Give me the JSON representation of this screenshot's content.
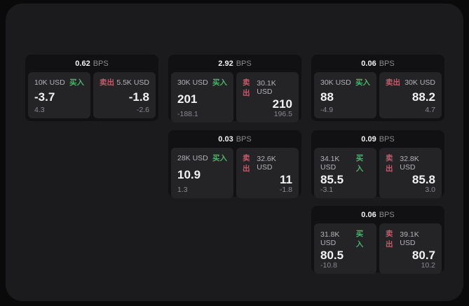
{
  "labels": {
    "bps_unit": "BPS",
    "buy": "买入",
    "sell": "卖出"
  },
  "colors": {
    "buy_green": "#4db36a",
    "sell_red": "#c9596a",
    "page_bg": "#0a0a0b",
    "panel_bg": "#1b1b1d",
    "card_bg": "#111113",
    "tile_bg": "#242427"
  },
  "cards": [
    {
      "bps": "0.62",
      "buy": {
        "amount": "10K USD",
        "price": "-3.7",
        "change": "4.3"
      },
      "sell": {
        "amount": "5.5K USD",
        "price": "-1.8",
        "change": "-2.6"
      }
    },
    {
      "bps": "2.92",
      "buy": {
        "amount": "30K USD",
        "price": "201",
        "change": "-188.1"
      },
      "sell": {
        "amount": "30.1K USD",
        "price": "210",
        "change": "196.5"
      }
    },
    {
      "bps": "0.06",
      "buy": {
        "amount": "30K USD",
        "price": "88",
        "change": "-4.9"
      },
      "sell": {
        "amount": "30K USD",
        "price": "88.2",
        "change": "4.7"
      }
    },
    {
      "bps": "0.03",
      "buy": {
        "amount": "28K USD",
        "price": "10.9",
        "change": "1.3"
      },
      "sell": {
        "amount": "32.6K USD",
        "price": "11",
        "change": "-1.8"
      }
    },
    {
      "bps": "0.09",
      "buy": {
        "amount": "34.1K USD",
        "price": "85.5",
        "change": "-3.1"
      },
      "sell": {
        "amount": "32.8K USD",
        "price": "85.8",
        "change": "3.0"
      }
    },
    {
      "bps": "0.06",
      "buy": {
        "amount": "31.8K USD",
        "price": "80.5",
        "change": "-10.8"
      },
      "sell": {
        "amount": "39.1K USD",
        "price": "80.7",
        "change": "10.2"
      }
    }
  ]
}
